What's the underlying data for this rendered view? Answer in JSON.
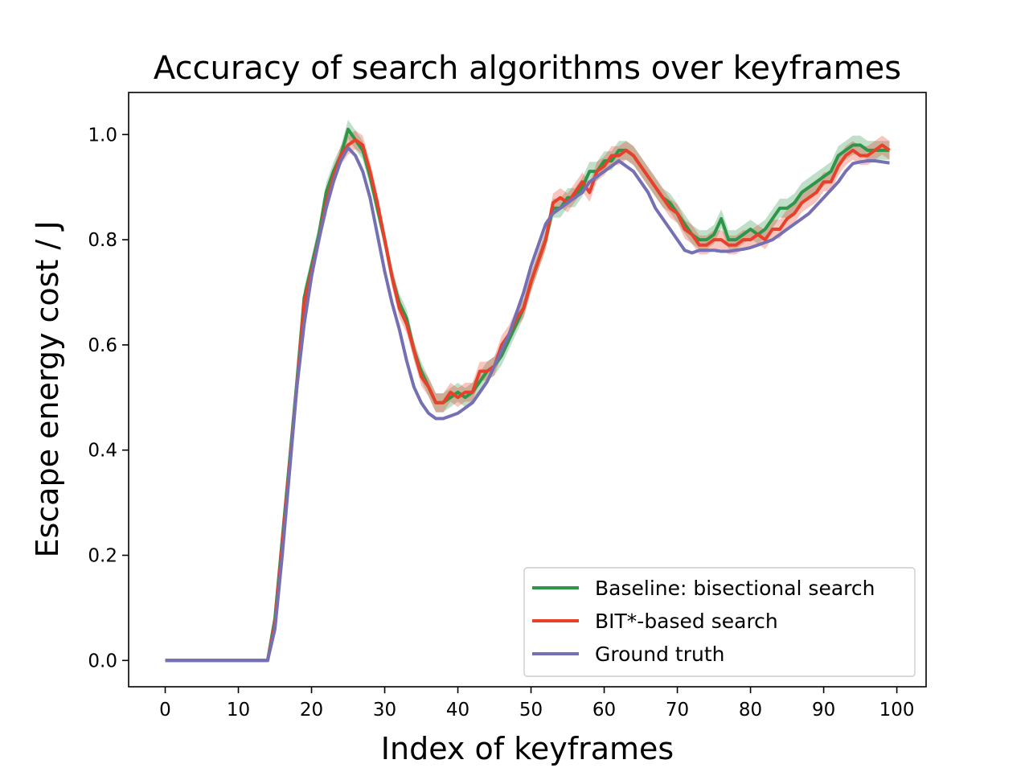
{
  "chart_data": {
    "type": "line",
    "title": "Accuracy of search algorithms over keyframes",
    "xlabel": "Index of keyframes",
    "ylabel": "Escape energy cost / J",
    "xlim": [
      -5,
      104
    ],
    "ylim": [
      -0.05,
      1.08
    ],
    "xticks": [
      0,
      10,
      20,
      30,
      40,
      50,
      60,
      70,
      80,
      90,
      100
    ],
    "xtick_labels": [
      "0",
      "10",
      "20",
      "30",
      "40",
      "50",
      "60",
      "70",
      "80",
      "90",
      "100"
    ],
    "yticks": [
      0.0,
      0.2,
      0.4,
      0.6,
      0.8,
      1.0
    ],
    "ytick_labels": [
      "0.0",
      "0.2",
      "0.4",
      "0.6",
      "0.8",
      "1.0"
    ],
    "grid": false,
    "legend_position": "lower-right",
    "x": [
      0,
      1,
      2,
      3,
      4,
      5,
      6,
      7,
      8,
      9,
      10,
      11,
      12,
      13,
      14,
      15,
      16,
      17,
      18,
      19,
      20,
      21,
      22,
      23,
      24,
      25,
      26,
      27,
      28,
      29,
      30,
      31,
      32,
      33,
      34,
      35,
      36,
      37,
      38,
      39,
      40,
      41,
      42,
      43,
      44,
      45,
      46,
      47,
      48,
      49,
      50,
      51,
      52,
      53,
      54,
      55,
      56,
      57,
      58,
      59,
      60,
      61,
      62,
      63,
      64,
      65,
      66,
      67,
      68,
      69,
      70,
      71,
      72,
      73,
      74,
      75,
      76,
      77,
      78,
      79,
      80,
      81,
      82,
      83,
      84,
      85,
      86,
      87,
      88,
      89,
      90,
      91,
      92,
      93,
      94,
      95,
      96,
      97,
      98,
      99
    ],
    "series": [
      {
        "name": "Baseline: bisectional search",
        "color": "#2e9648",
        "band_color": "#2e9648",
        "band_halfwidth": 0.018,
        "values": [
          0,
          0,
          0,
          0,
          0,
          0,
          0,
          0,
          0,
          0,
          0,
          0,
          0,
          0,
          0,
          0.08,
          0.23,
          0.38,
          0.53,
          0.69,
          0.75,
          0.81,
          0.89,
          0.93,
          0.96,
          1.01,
          0.99,
          0.97,
          0.92,
          0.86,
          0.8,
          0.73,
          0.68,
          0.65,
          0.59,
          0.55,
          0.52,
          0.49,
          0.49,
          0.5,
          0.51,
          0.5,
          0.51,
          0.53,
          0.55,
          0.56,
          0.58,
          0.61,
          0.64,
          0.67,
          0.72,
          0.76,
          0.8,
          0.86,
          0.86,
          0.88,
          0.88,
          0.9,
          0.93,
          0.93,
          0.95,
          0.95,
          0.97,
          0.97,
          0.96,
          0.94,
          0.92,
          0.9,
          0.88,
          0.87,
          0.85,
          0.83,
          0.81,
          0.8,
          0.8,
          0.81,
          0.84,
          0.8,
          0.8,
          0.81,
          0.82,
          0.81,
          0.82,
          0.84,
          0.86,
          0.86,
          0.87,
          0.89,
          0.9,
          0.91,
          0.92,
          0.93,
          0.96,
          0.97,
          0.98,
          0.98,
          0.97,
          0.97,
          0.97,
          0.97
        ]
      },
      {
        "name": "BIT*-based search",
        "color": "#e8402a",
        "band_color": "#e8402a",
        "band_halfwidth": 0.018,
        "values": [
          0,
          0,
          0,
          0,
          0,
          0,
          0,
          0,
          0,
          0,
          0,
          0,
          0,
          0,
          0,
          0.07,
          0.22,
          0.37,
          0.52,
          0.68,
          0.74,
          0.8,
          0.87,
          0.92,
          0.96,
          0.98,
          0.99,
          0.98,
          0.93,
          0.87,
          0.8,
          0.73,
          0.67,
          0.64,
          0.59,
          0.54,
          0.52,
          0.49,
          0.49,
          0.51,
          0.5,
          0.51,
          0.51,
          0.55,
          0.55,
          0.56,
          0.6,
          0.62,
          0.65,
          0.67,
          0.72,
          0.76,
          0.8,
          0.87,
          0.88,
          0.87,
          0.89,
          0.91,
          0.89,
          0.93,
          0.94,
          0.96,
          0.96,
          0.97,
          0.96,
          0.94,
          0.92,
          0.9,
          0.88,
          0.86,
          0.85,
          0.82,
          0.81,
          0.79,
          0.79,
          0.8,
          0.8,
          0.79,
          0.79,
          0.8,
          0.8,
          0.81,
          0.8,
          0.82,
          0.82,
          0.84,
          0.85,
          0.87,
          0.88,
          0.89,
          0.91,
          0.91,
          0.94,
          0.96,
          0.97,
          0.96,
          0.96,
          0.97,
          0.98,
          0.97
        ]
      },
      {
        "name": "Ground truth",
        "color": "#7570b3",
        "values": [
          0,
          0,
          0,
          0,
          0,
          0,
          0,
          0,
          0,
          0,
          0,
          0,
          0,
          0,
          0,
          0.06,
          0.2,
          0.36,
          0.52,
          0.64,
          0.73,
          0.8,
          0.86,
          0.91,
          0.95,
          0.975,
          0.96,
          0.93,
          0.88,
          0.81,
          0.74,
          0.68,
          0.63,
          0.57,
          0.52,
          0.49,
          0.47,
          0.46,
          0.46,
          0.465,
          0.47,
          0.48,
          0.49,
          0.51,
          0.53,
          0.56,
          0.59,
          0.62,
          0.66,
          0.7,
          0.75,
          0.79,
          0.83,
          0.85,
          0.86,
          0.87,
          0.88,
          0.89,
          0.91,
          0.92,
          0.93,
          0.94,
          0.95,
          0.94,
          0.93,
          0.91,
          0.89,
          0.86,
          0.84,
          0.82,
          0.8,
          0.78,
          0.775,
          0.78,
          0.78,
          0.78,
          0.778,
          0.778,
          0.78,
          0.782,
          0.785,
          0.79,
          0.795,
          0.8,
          0.81,
          0.82,
          0.83,
          0.84,
          0.85,
          0.865,
          0.88,
          0.895,
          0.91,
          0.93,
          0.945,
          0.948,
          0.95,
          0.95,
          0.948,
          0.946
        ]
      }
    ]
  }
}
